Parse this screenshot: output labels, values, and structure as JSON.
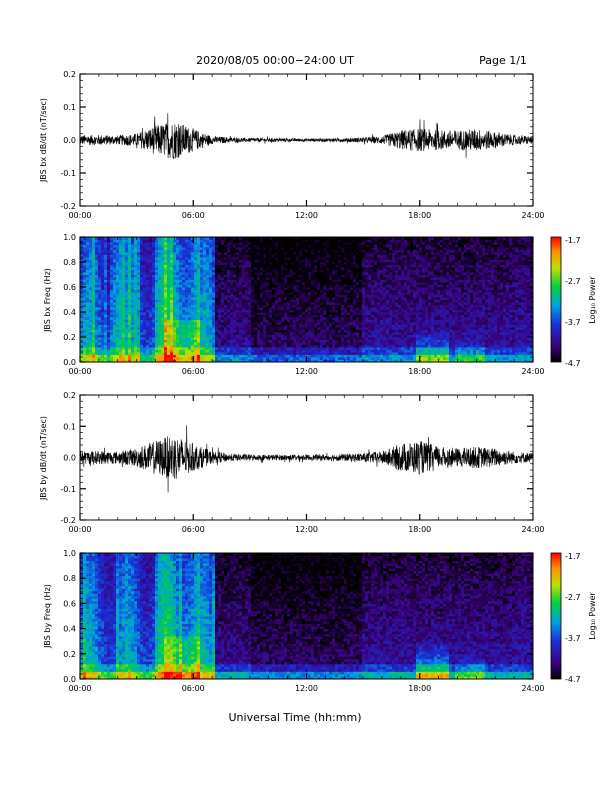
{
  "header": {
    "title": "2020/08/05  00:00−24:00 UT",
    "page": "Page 1/1"
  },
  "xlabel": "Universal Time (hh:mm)",
  "colorbar": {
    "label": "Log₁₀ Power",
    "ticks": [
      "-1.7",
      "-2.7",
      "-3.7",
      "-4.7"
    ],
    "range": [
      -4.7,
      -1.7
    ]
  },
  "chart_data": [
    {
      "type": "line",
      "ylabel": "JBS bx dB/dt (nT/sec)",
      "xlim": [
        0,
        24
      ],
      "ylim": [
        -0.2,
        0.2
      ],
      "xticks": [
        "00:00",
        "06:00",
        "12:00",
        "18:00",
        "24:00"
      ],
      "yticks": [
        "0.2",
        "0.1",
        "0.0",
        "-0.1",
        "-0.2"
      ],
      "series": [
        {
          "x": [
            0,
            1,
            2,
            3,
            4,
            5,
            6,
            7,
            8,
            9,
            10,
            11,
            12,
            13,
            14,
            15,
            16,
            17,
            18,
            19,
            20,
            21,
            22,
            23,
            24
          ],
          "amplitude": [
            0.015,
            0.016,
            0.014,
            0.02,
            0.045,
            0.06,
            0.035,
            0.012,
            0.008,
            0.006,
            0.006,
            0.005,
            0.005,
            0.005,
            0.006,
            0.008,
            0.012,
            0.03,
            0.035,
            0.03,
            0.03,
            0.035,
            0.025,
            0.015,
            0.012
          ]
        }
      ]
    },
    {
      "type": "heatmap",
      "ylabel": "JBS bx Freq (Hz)",
      "xlim": [
        0,
        24
      ],
      "ylim": [
        0,
        1.0
      ],
      "xticks": [
        "00:00",
        "06:00",
        "12:00",
        "18:00",
        "24:00"
      ],
      "yticks": [
        "1.0",
        "0.8",
        "0.6",
        "0.4",
        "0.2",
        "0.0"
      ]
    },
    {
      "type": "line",
      "ylabel": "JBS by dB/dt (nT/sec)",
      "xlim": [
        0,
        24
      ],
      "ylim": [
        -0.2,
        0.2
      ],
      "xticks": [
        "00:00",
        "06:00",
        "12:00",
        "18:00",
        "24:00"
      ],
      "yticks": [
        "0.2",
        "0.1",
        "0.0",
        "-0.1",
        "-0.2"
      ],
      "series": [
        {
          "x": [
            0,
            1,
            2,
            3,
            4,
            5,
            6,
            7,
            8,
            9,
            10,
            11,
            12,
            13,
            14,
            15,
            16,
            17,
            18,
            19,
            20,
            21,
            22,
            23,
            24
          ],
          "amplitude": [
            0.02,
            0.022,
            0.02,
            0.03,
            0.055,
            0.075,
            0.045,
            0.02,
            0.012,
            0.01,
            0.009,
            0.009,
            0.009,
            0.01,
            0.012,
            0.015,
            0.02,
            0.045,
            0.055,
            0.035,
            0.03,
            0.035,
            0.03,
            0.02,
            0.015
          ]
        }
      ]
    },
    {
      "type": "heatmap",
      "ylabel": "JBS by Freq (Hz)",
      "xlim": [
        0,
        24
      ],
      "ylim": [
        0,
        1.0
      ],
      "xticks": [
        "00:00",
        "06:00",
        "12:00",
        "18:00",
        "24:00"
      ],
      "yticks": [
        "1.0",
        "0.8",
        "0.6",
        "0.4",
        "0.2",
        "0.0"
      ]
    }
  ]
}
